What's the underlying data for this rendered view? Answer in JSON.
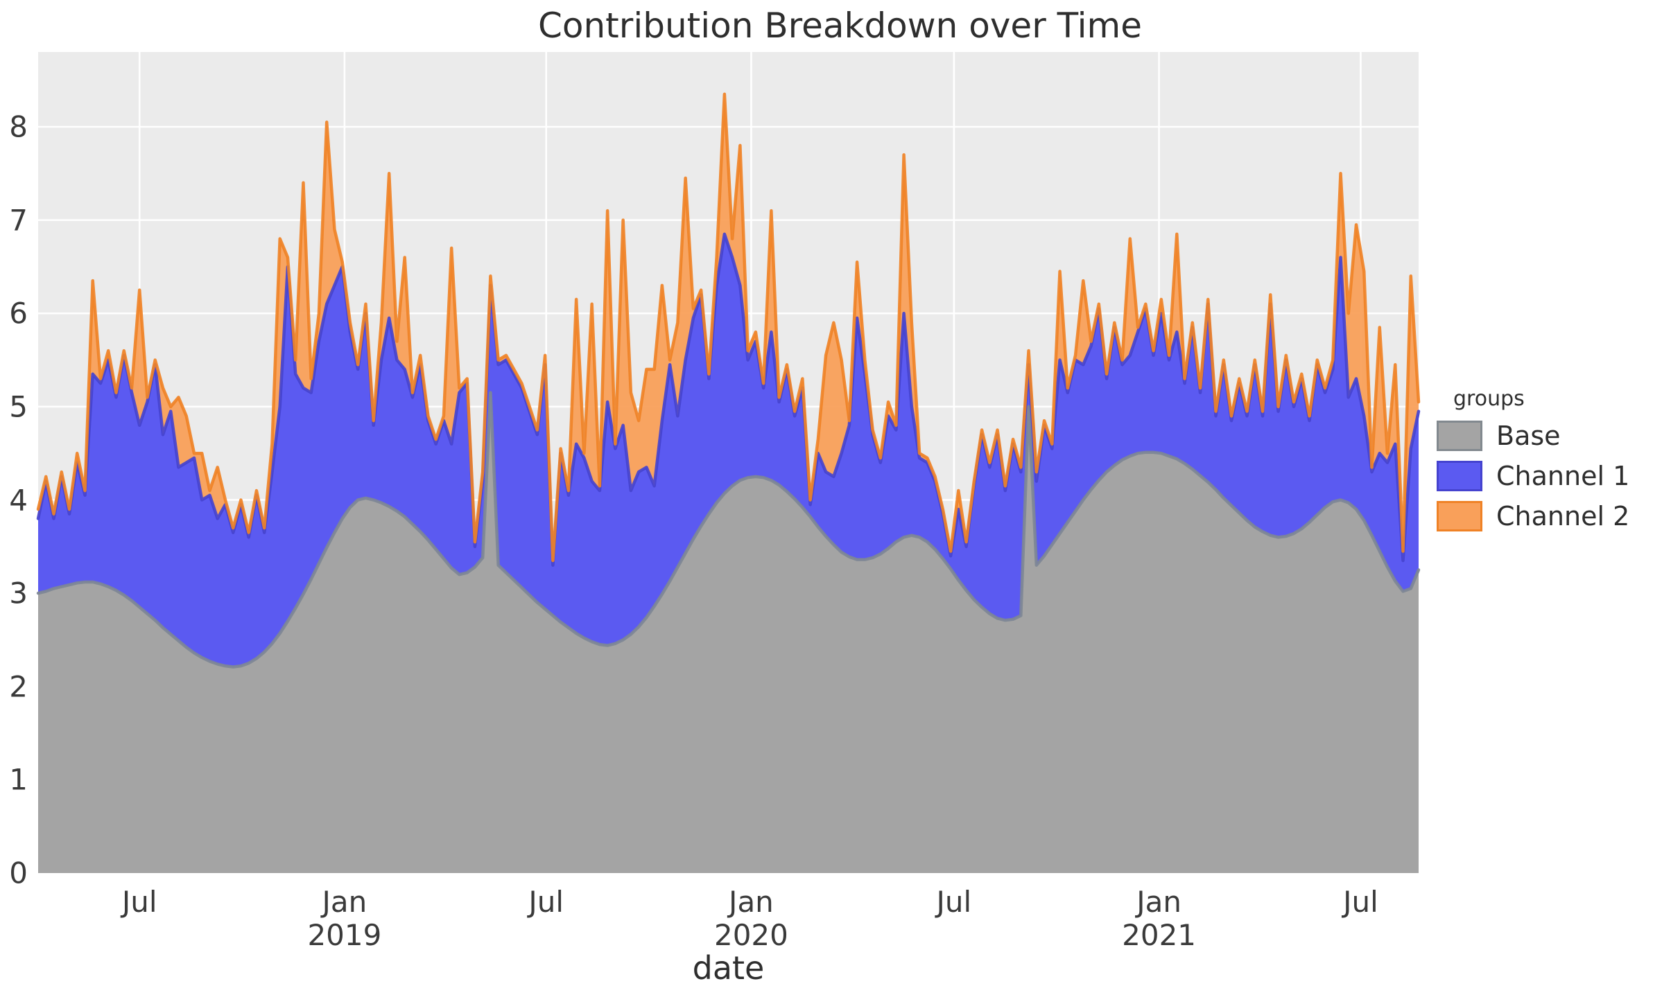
{
  "title": "Contribution Breakdown over Time",
  "axes": {
    "x_label": "date",
    "y_ticks": [
      0,
      1,
      2,
      3,
      4,
      5,
      6,
      7,
      8
    ],
    "x_ticks": [
      {
        "date": "2018-07-01",
        "label": "Jul",
        "sublabel": ""
      },
      {
        "date": "2019-01-01",
        "label": "Jan",
        "sublabel": "2019"
      },
      {
        "date": "2019-07-01",
        "label": "Jul",
        "sublabel": ""
      },
      {
        "date": "2020-01-01",
        "label": "Jan",
        "sublabel": "2020"
      },
      {
        "date": "2020-07-01",
        "label": "Jul",
        "sublabel": ""
      },
      {
        "date": "2021-01-01",
        "label": "Jan",
        "sublabel": "2021"
      },
      {
        "date": "2021-07-01",
        "label": "Jul",
        "sublabel": ""
      }
    ]
  },
  "legend": {
    "title": "groups",
    "items": [
      {
        "label": "Base",
        "fill": "#a4a4a4",
        "border": "#82898f"
      },
      {
        "label": "Channel 1",
        "fill": "#5b5af1",
        "border": "#4543cf"
      },
      {
        "label": "Channel 2",
        "fill": "#f9a05a",
        "border": "#ef8226"
      }
    ]
  },
  "colors": {
    "figure_bg": "#ffffff",
    "panel_bg": "#ebebeb",
    "grid": "#ffffff",
    "base_fill": "#a4a4a4",
    "base_stroke": "#7e8795",
    "ch1_fill": "#5b5af1",
    "ch1_stroke": "#4543cf",
    "ch2_fill": "#f9a05a",
    "ch2_stroke": "#ef8226"
  },
  "chart_data": {
    "type": "area",
    "stacked": true,
    "title": "Contribution Breakdown over Time",
    "xlabel": "date",
    "ylabel": "",
    "ylim": [
      0,
      8.8
    ],
    "grid": true,
    "legend_position": "right",
    "x_start_date": "2018-04-01",
    "x_step_days": 7,
    "series": [
      {
        "name": "Base",
        "values": [
          3.0,
          3.02,
          3.05,
          3.07,
          3.09,
          3.11,
          3.12,
          3.12,
          3.1,
          3.07,
          3.03,
          2.98,
          2.92,
          2.85,
          2.78,
          2.71,
          2.63,
          2.56,
          2.49,
          2.42,
          2.36,
          2.31,
          2.27,
          2.24,
          2.22,
          2.21,
          2.22,
          2.25,
          2.3,
          2.37,
          2.46,
          2.57,
          2.7,
          2.84,
          2.99,
          3.15,
          3.32,
          3.49,
          3.65,
          3.8,
          3.92,
          4.0,
          4.02,
          4.0,
          3.97,
          3.93,
          3.88,
          3.82,
          3.74,
          3.66,
          3.57,
          3.47,
          3.37,
          3.27,
          3.2,
          3.22,
          3.28,
          3.38,
          5.15,
          3.3,
          3.22,
          3.14,
          3.06,
          2.98,
          2.9,
          2.83,
          2.76,
          2.69,
          2.63,
          2.57,
          2.52,
          2.48,
          2.45,
          2.44,
          2.46,
          2.5,
          2.56,
          2.64,
          2.74,
          2.86,
          2.99,
          3.13,
          3.28,
          3.43,
          3.58,
          3.72,
          3.85,
          3.97,
          4.07,
          4.15,
          4.21,
          4.24,
          4.25,
          4.24,
          4.21,
          4.16,
          4.09,
          4.01,
          3.92,
          3.82,
          3.71,
          3.61,
          3.52,
          3.44,
          3.39,
          3.36,
          3.36,
          3.38,
          3.42,
          3.48,
          3.55,
          3.6,
          3.62,
          3.6,
          3.55,
          3.47,
          3.37,
          3.26,
          3.14,
          3.03,
          2.93,
          2.85,
          2.78,
          2.73,
          2.71,
          2.72,
          2.76,
          5.0,
          3.3,
          3.4,
          3.52,
          3.64,
          3.76,
          3.88,
          4.0,
          4.11,
          4.21,
          4.3,
          4.37,
          4.43,
          4.47,
          4.5,
          4.51,
          4.51,
          4.5,
          4.47,
          4.44,
          4.39,
          4.33,
          4.26,
          4.19,
          4.11,
          4.02,
          3.94,
          3.86,
          3.78,
          3.71,
          3.66,
          3.62,
          3.6,
          3.61,
          3.64,
          3.69,
          3.76,
          3.84,
          3.92,
          3.98,
          4.0,
          3.97,
          3.9,
          3.78,
          3.62,
          3.45,
          3.28,
          3.13,
          3.02,
          3.05,
          3.25
        ]
      },
      {
        "name": "Channel 1",
        "values": [
          0.8,
          1.18,
          0.75,
          1.18,
          0.76,
          1.29,
          0.93,
          2.23,
          2.15,
          2.43,
          2.07,
          2.57,
          2.23,
          1.95,
          2.27,
          2.74,
          2.07,
          2.39,
          1.86,
          1.98,
          2.09,
          1.69,
          1.78,
          1.56,
          1.73,
          1.44,
          1.73,
          1.35,
          1.75,
          1.28,
          1.84,
          2.43,
          3.8,
          2.51,
          2.21,
          2.0,
          2.38,
          2.61,
          2.65,
          2.7,
          1.88,
          1.4,
          1.98,
          0.8,
          1.53,
          2.02,
          1.62,
          1.58,
          1.36,
          1.79,
          1.28,
          1.13,
          1.48,
          1.33,
          1.95,
          2.03,
          0.22,
          0.82,
          1.15,
          2.15,
          2.28,
          2.21,
          2.14,
          1.97,
          1.8,
          2.62,
          0.54,
          1.81,
          1.42,
          2.03,
          1.93,
          1.72,
          1.65,
          2.61,
          2.09,
          2.3,
          1.54,
          1.66,
          1.61,
          1.29,
          1.86,
          2.32,
          1.62,
          2.07,
          2.37,
          2.48,
          1.45,
          2.33,
          2.78,
          2.45,
          2.09,
          1.26,
          1.45,
          0.96,
          1.59,
          0.89,
          1.31,
          0.89,
          1.28,
          0.13,
          0.79,
          0.69,
          0.73,
          1.06,
          1.41,
          2.59,
          1.99,
          1.32,
          0.98,
          1.42,
          1.2,
          2.4,
          1.38,
          0.85,
          0.85,
          0.73,
          0.48,
          0.14,
          0.76,
          0.47,
          1.22,
          1.85,
          1.57,
          1.97,
          1.39,
          1.88,
          1.54,
          0.45,
          0.9,
          1.4,
          1.03,
          1.86,
          1.39,
          1.62,
          1.45,
          1.54,
          1.84,
          1.0,
          1.48,
          1.02,
          1.08,
          1.3,
          1.54,
          1.04,
          1.5,
          1.03,
          1.36,
          0.86,
          1.52,
          0.89,
          1.91,
          0.79,
          1.43,
          0.91,
          1.39,
          1.12,
          1.74,
          1.24,
          2.48,
          1.35,
          1.89,
          1.36,
          1.61,
          1.09,
          1.61,
          1.23,
          1.42,
          2.6,
          1.13,
          1.4,
          1.12,
          0.68,
          1.05,
          1.12,
          1.47,
          0.33,
          1.5,
          1.7
        ]
      },
      {
        "name": "Channel 2",
        "values": [
          0.1,
          0.05,
          0.05,
          0.05,
          0.05,
          0.1,
          0.05,
          1.0,
          0.05,
          0.1,
          0.05,
          0.05,
          0.05,
          1.45,
          0.05,
          0.05,
          0.5,
          0.05,
          0.75,
          0.5,
          0.05,
          0.5,
          0.05,
          0.55,
          0.05,
          0.05,
          0.05,
          0.05,
          0.05,
          0.05,
          0.3,
          1.8,
          0.1,
          0.15,
          2.2,
          0.15,
          0.3,
          1.95,
          0.6,
          0.05,
          0.1,
          0.05,
          0.1,
          0.05,
          0.4,
          1.55,
          0.2,
          1.2,
          0.05,
          0.1,
          0.05,
          0.05,
          0.05,
          2.1,
          0.05,
          0.05,
          0.05,
          0.1,
          0.1,
          0.05,
          0.05,
          0.05,
          0.05,
          0.05,
          0.05,
          0.1,
          0.05,
          0.05,
          0.05,
          1.55,
          0.05,
          1.9,
          0.05,
          2.05,
          0.05,
          2.2,
          1.05,
          0.55,
          1.05,
          1.25,
          1.45,
          0.05,
          1.0,
          1.95,
          0.1,
          0.05,
          0.05,
          0.3,
          1.5,
          0.2,
          1.5,
          0.1,
          0.1,
          0.05,
          1.3,
          0.05,
          0.05,
          0.05,
          0.1,
          0.05,
          0.15,
          1.25,
          1.65,
          1.0,
          0.05,
          0.6,
          0.15,
          0.05,
          0.05,
          0.15,
          0.05,
          1.7,
          0.9,
          0.05,
          0.05,
          0.05,
          0.05,
          0.05,
          0.2,
          0.05,
          0.05,
          0.05,
          0.05,
          0.05,
          0.05,
          0.05,
          0.05,
          0.15,
          0.1,
          0.05,
          0.05,
          0.95,
          0.05,
          0.05,
          0.9,
          0.05,
          0.05,
          0.05,
          0.05,
          0.05,
          1.25,
          0.05,
          0.05,
          0.05,
          0.15,
          0.05,
          1.05,
          0.05,
          0.05,
          0.05,
          0.05,
          0.05,
          0.05,
          0.05,
          0.05,
          0.05,
          0.05,
          0.05,
          0.1,
          0.05,
          0.05,
          0.05,
          0.05,
          0.05,
          0.05,
          0.05,
          0.1,
          0.9,
          0.9,
          1.65,
          1.55,
          0.05,
          1.35,
          0.1,
          0.85,
          0.1,
          1.85,
          0.1
        ]
      }
    ]
  }
}
